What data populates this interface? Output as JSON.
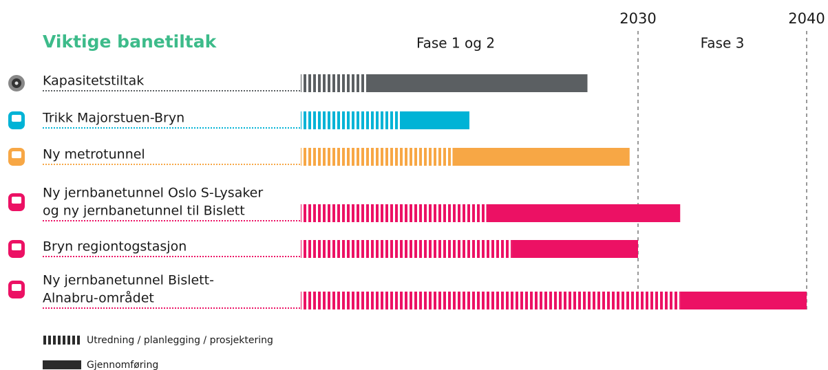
{
  "chart_data": {
    "type": "gantt",
    "title": "Viktige banetiltak",
    "phases": [
      "Fase 1 og 2",
      "Fase 3"
    ],
    "xlim": [
      2010,
      2040
    ],
    "xticks": [
      2030,
      2040
    ],
    "tasks": [
      {
        "name": [
          "Kapasitetstiltak"
        ],
        "color": "#5b5f62",
        "start": 2010,
        "split": 2014,
        "end": 2027
      },
      {
        "name": [
          "Trikk Majorstuen-Bryn"
        ],
        "color": "#00b3d6",
        "start": 2010,
        "split": 2016,
        "end": 2020
      },
      {
        "name": [
          "Ny metrotunnel"
        ],
        "color": "#f7a745",
        "start": 2010,
        "split": 2019,
        "end": 2029.5
      },
      {
        "name": [
          "Ny jernbanetunnel Oslo S-Lysaker",
          "og ny jernbanetunnel til Bislett"
        ],
        "color": "#ec1164",
        "start": 2010,
        "split": 2021,
        "end": 2032.5
      },
      {
        "name": [
          "Bryn regiontogstasjon"
        ],
        "color": "#ec1164",
        "start": 2010,
        "split": 2022.5,
        "end": 2030
      },
      {
        "name": [
          "Ny jernbanetunnel Bislett-",
          "Alnabru-området"
        ],
        "color": "#ec1164",
        "start": 2010,
        "split": 2032.5,
        "end": 2040
      }
    ],
    "legend": [
      "Utredning / planlegging / prosjektering",
      "Gjennomføring"
    ],
    "legend_color": "#2b2b2b"
  }
}
